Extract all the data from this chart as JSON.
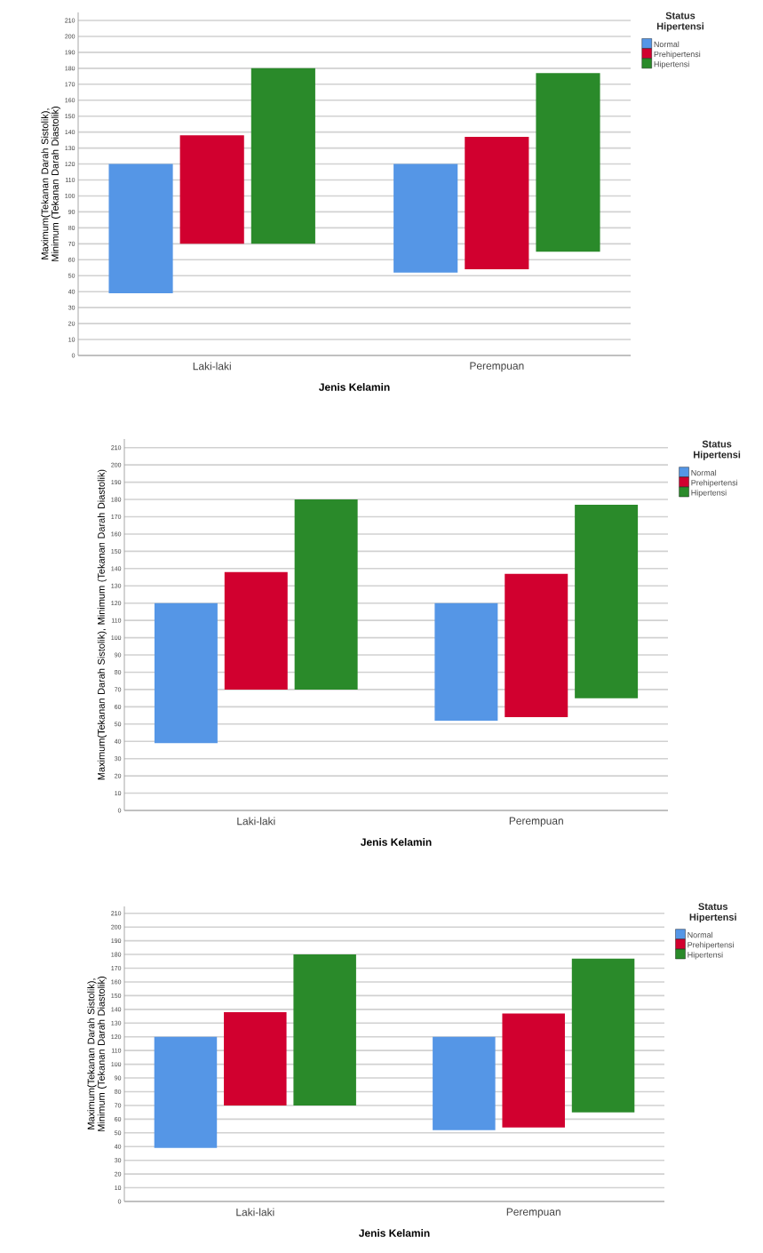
{
  "chart_data": [
    {
      "type": "bar",
      "xlabel": "Jenis Kelamin",
      "ylabel": "Maximum(Tekanan Darah Sistolik), Minimum (Tekanan Darah Diastolik)",
      "legend_title": "Status Hipertensi",
      "categories": [
        "Laki-laki",
        "Perempuan"
      ],
      "series": [
        {
          "name": "Normal",
          "color": "#5596e6",
          "base": [
            39,
            52
          ],
          "values": [
            81,
            68
          ]
        },
        {
          "name": "Prehipertensi",
          "color": "#d1002f",
          "base": [
            70,
            54
          ],
          "values": [
            68,
            83
          ]
        },
        {
          "name": "Hipertensi",
          "color": "#2a8a2a",
          "base": [
            70,
            65
          ],
          "values": [
            110,
            112
          ]
        }
      ],
      "ylim": [
        0,
        215
      ],
      "yticks": [
        0,
        10,
        20,
        30,
        40,
        50,
        60,
        70,
        80,
        90,
        100,
        110,
        120,
        130,
        140,
        150,
        160,
        170,
        180,
        190,
        200,
        210
      ],
      "grid": "y",
      "legend": "right"
    },
    {
      "type": "bar",
      "xlabel": "Jenis Kelamin",
      "ylabel": "Maximum(Tekanan Darah Sistolik), Minimum (Tekanan Darah Diastolik)",
      "legend_title": "Status Hipertensi",
      "categories": [
        "Laki-laki",
        "Perempuan"
      ],
      "series": [
        {
          "name": "Normal",
          "color": "#5596e6",
          "base": [
            39,
            52
          ],
          "values": [
            81,
            68
          ]
        },
        {
          "name": "Prehipertensi",
          "color": "#d1002f",
          "base": [
            70,
            54
          ],
          "values": [
            68,
            83
          ]
        },
        {
          "name": "Hipertensi",
          "color": "#2a8a2a",
          "base": [
            70,
            65
          ],
          "values": [
            110,
            112
          ]
        }
      ],
      "ylim": [
        0,
        215
      ],
      "yticks": [
        0,
        10,
        20,
        30,
        40,
        50,
        60,
        70,
        80,
        90,
        100,
        110,
        120,
        130,
        140,
        150,
        160,
        170,
        180,
        190,
        200,
        210
      ],
      "grid": "y",
      "legend": "right"
    },
    {
      "type": "bar",
      "xlabel": "Jenis Kelamin",
      "ylabel": "Maximum(Tekanan Darah Sistolik), Minimum (Tekanan Darah Diastolik)",
      "legend_title": "Status Hipertensi",
      "categories": [
        "Laki-laki",
        "Perempuan"
      ],
      "series": [
        {
          "name": "Normal",
          "color": "#5596e6",
          "base": [
            39,
            52
          ],
          "values": [
            81,
            68
          ]
        },
        {
          "name": "Prehipertensi",
          "color": "#d1002f",
          "base": [
            70,
            54
          ],
          "values": [
            68,
            83
          ]
        },
        {
          "name": "Hipertensi",
          "color": "#2a8a2a",
          "base": [
            70,
            65
          ],
          "values": [
            110,
            112
          ]
        }
      ],
      "ylim": [
        0,
        215
      ],
      "yticks": [
        0,
        10,
        20,
        30,
        40,
        50,
        60,
        70,
        80,
        90,
        100,
        110,
        120,
        130,
        140,
        150,
        160,
        170,
        180,
        190,
        200,
        210
      ],
      "grid": "y",
      "legend": "right"
    }
  ]
}
